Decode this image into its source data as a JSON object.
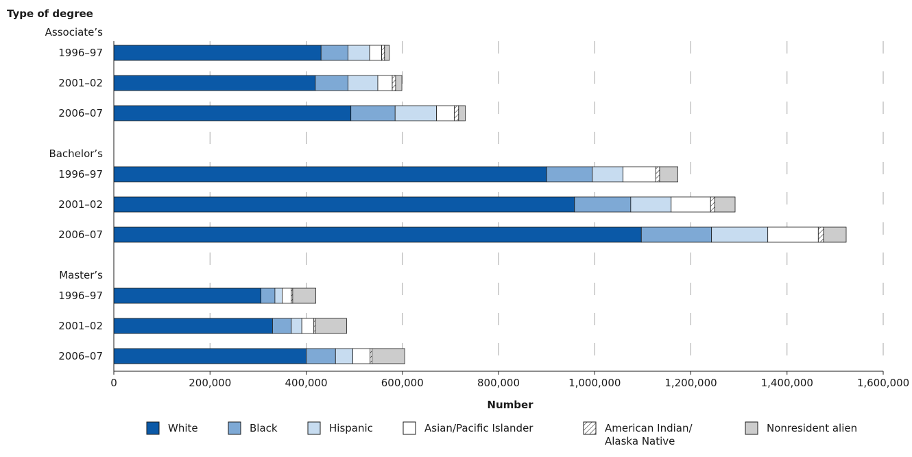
{
  "chart_data": {
    "type": "bar",
    "orientation": "horizontal",
    "stacked": true,
    "ylabel": "Type of degree",
    "xlabel": "Number",
    "xlim": [
      0,
      1600000
    ],
    "x_ticks": [
      "0",
      "200,000",
      "400,000",
      "600,000",
      "800,000",
      "1,000,000",
      "1,200,000",
      "1,400,000",
      "1,600,000"
    ],
    "grid": "dashed vertical",
    "legend_position": "bottom",
    "groups": [
      {
        "label": "Associate’s",
        "rows": [
          {
            "year": "1996–97",
            "values": [
              431000,
              56000,
              45000,
              25000,
              6000,
              10000
            ]
          },
          {
            "year": "2001–02",
            "values": [
              419000,
              68000,
              62000,
              30000,
              7000,
              13000
            ]
          },
          {
            "year": "2006–07",
            "values": [
              493000,
              92000,
              86000,
              37000,
              9000,
              14000
            ]
          }
        ]
      },
      {
        "label": "Bachelor’s",
        "rows": [
          {
            "year": "1996–97",
            "values": [
              900000,
              95000,
              64000,
              68000,
              8000,
              38000
            ]
          },
          {
            "year": "2001–02",
            "values": [
              958000,
              117000,
              84000,
              82000,
              9000,
              42000
            ]
          },
          {
            "year": "2006–07",
            "values": [
              1097000,
              146000,
              117000,
              105000,
              11000,
              47000
            ]
          }
        ]
      },
      {
        "label": "Master’s",
        "rows": [
          {
            "year": "1996–97",
            "values": [
              306000,
              29000,
              15000,
              19000,
              3000,
              48000
            ]
          },
          {
            "year": "2001–02",
            "values": [
              330000,
              39000,
              22000,
              25000,
              3000,
              65000
            ]
          },
          {
            "year": "2006–07",
            "values": [
              400000,
              61000,
              36000,
              36000,
              4000,
              68000
            ]
          }
        ]
      }
    ],
    "series": [
      {
        "name": "White",
        "color": "#0b59a7",
        "pattern": "solid"
      },
      {
        "name": "Black",
        "color": "#7ea9d5",
        "pattern": "solid"
      },
      {
        "name": "Hispanic",
        "color": "#c7dcf0",
        "pattern": "solid"
      },
      {
        "name": "Asian/Pacific Islander",
        "color": "#ffffff",
        "pattern": "solid"
      },
      {
        "name": "American Indian/ Alaska Native",
        "legend_lines": [
          "American Indian/",
          "Alaska Native"
        ],
        "color": "#ffffff",
        "pattern": "hatch"
      },
      {
        "name": "Nonresident alien",
        "color": "#cccccc",
        "pattern": "solid"
      }
    ]
  }
}
